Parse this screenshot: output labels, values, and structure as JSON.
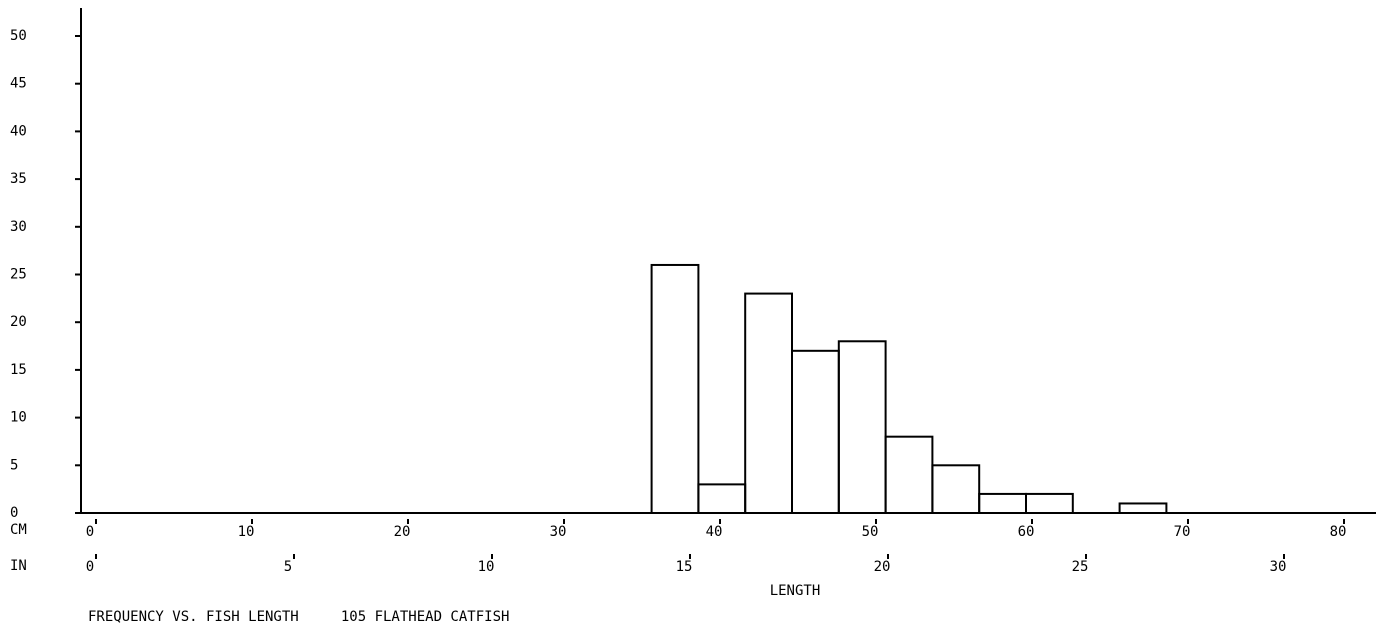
{
  "chart_data": {
    "type": "histogram",
    "title": "FREQUENCY VS. FISH LENGTH     105 FLATHEAD CATFISH",
    "x_label": "LENGTH",
    "x_unit_label": "CM",
    "x2_unit_label": "IN",
    "bins": [
      36,
      39,
      42,
      45,
      48,
      51,
      54,
      57,
      60,
      63,
      66,
      69
    ],
    "counts": [
      26,
      3,
      23,
      17,
      18,
      8,
      5,
      2,
      2,
      0,
      1
    ],
    "color": "#000000",
    "xlim": [
      0,
      82.5
    ],
    "xticks": [
      0,
      10,
      20,
      30,
      40,
      50,
      60,
      70,
      80
    ],
    "x2lim": [
      0,
      32.5
    ],
    "x2ticks": [
      0,
      5,
      10,
      15,
      20,
      25,
      30
    ],
    "ylim": [
      0,
      50
    ],
    "yticks": [
      0,
      5,
      10,
      15,
      20,
      25,
      30,
      35,
      40,
      45,
      50
    ],
    "grid": false
  }
}
